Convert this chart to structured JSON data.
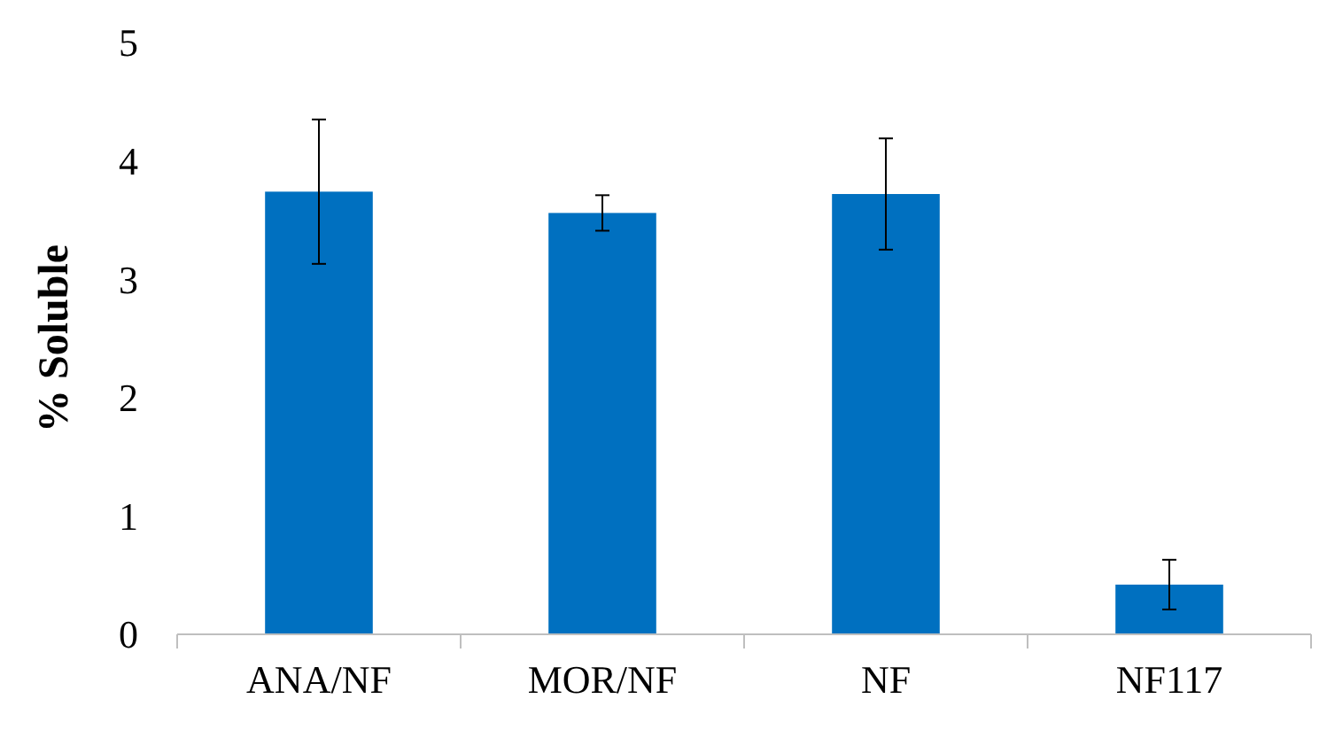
{
  "chart_data": {
    "type": "bar",
    "ylabel": "% Soluble",
    "categories": [
      "ANA/NF",
      "MOR/NF",
      "NF",
      "NF117"
    ],
    "values": [
      3.74,
      3.56,
      3.72,
      0.42
    ],
    "errors": [
      0.61,
      0.15,
      0.47,
      0.21
    ],
    "color": "#0070c0",
    "ylim": [
      0,
      5
    ],
    "yticks": [
      0,
      1,
      2,
      3,
      4,
      5
    ],
    "grid": false
  }
}
